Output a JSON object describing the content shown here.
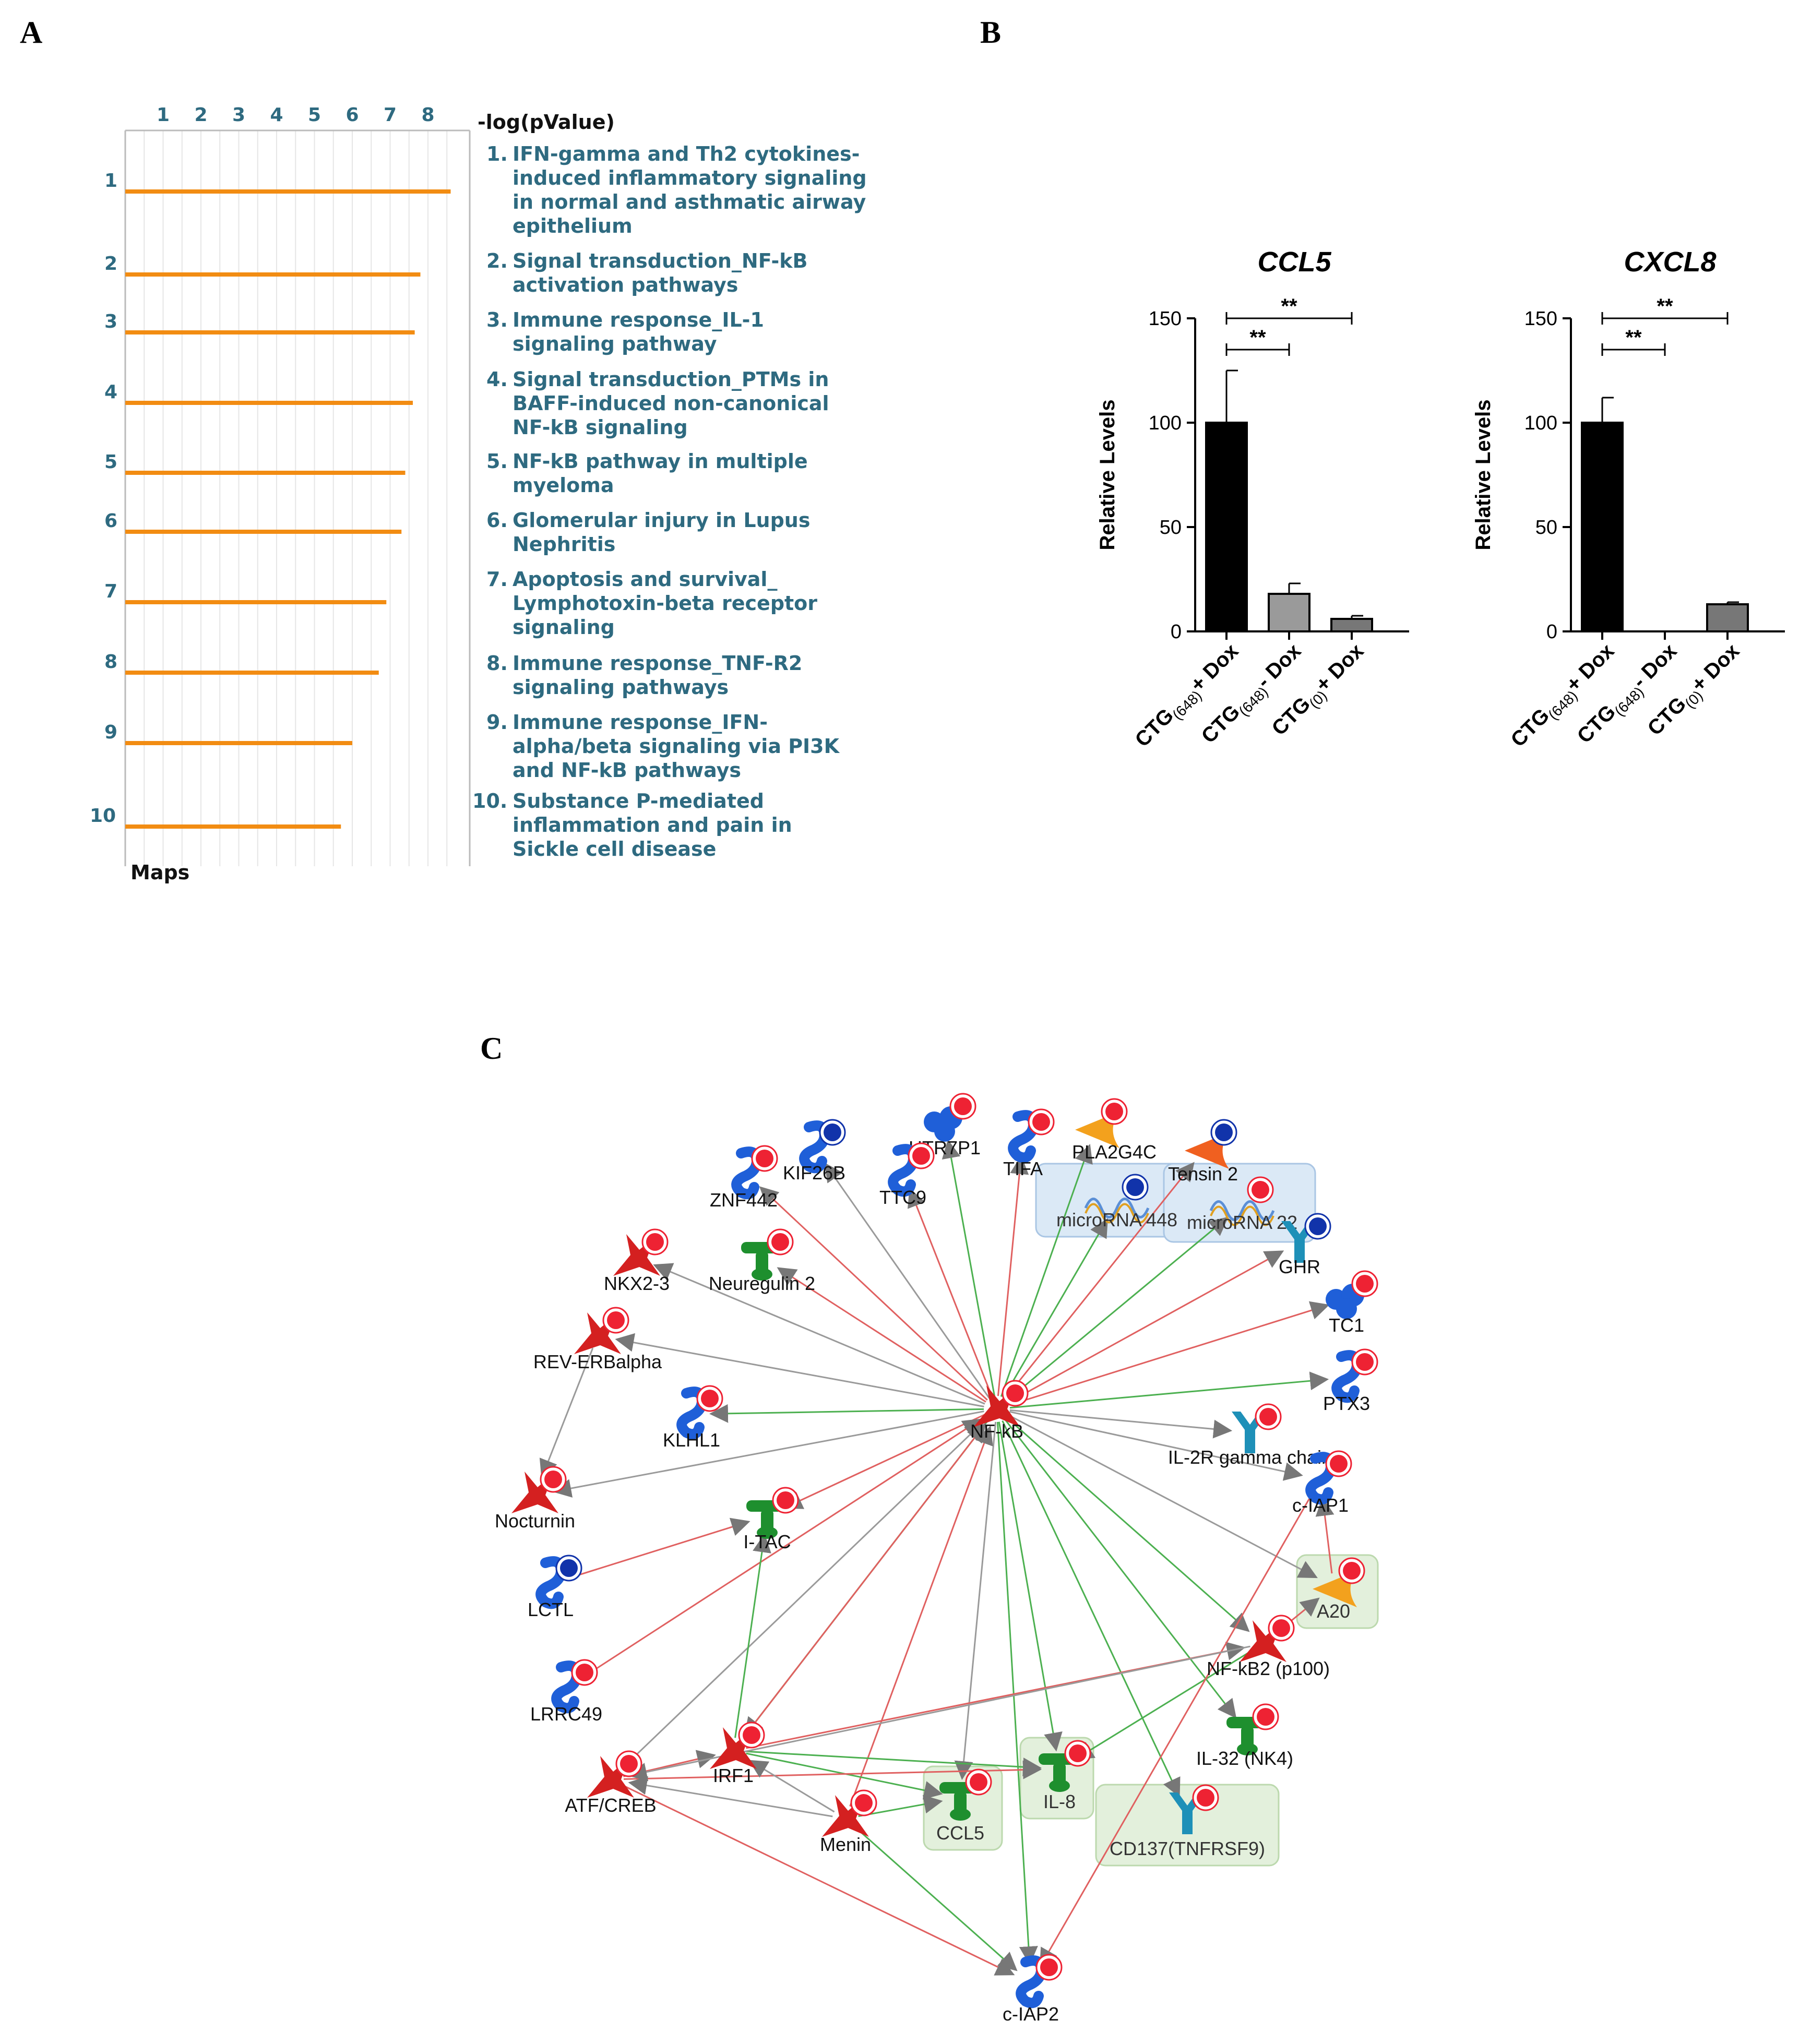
{
  "panels": {
    "a": "A",
    "b": "B",
    "c": "C"
  },
  "colors": {
    "orange": "#f28c12",
    "teal": "#2e6a80",
    "red_edge": "#e06060",
    "green_edge": "#4cb050",
    "gray_edge": "#9a9a9a"
  },
  "chart_data": [
    {
      "type": "bar",
      "orientation": "horizontal",
      "title": "",
      "xlabel": "-log(pValue)",
      "ylabel": "Maps",
      "xticks": [
        "1",
        "2",
        "3",
        "4",
        "5",
        "6",
        "7",
        "8"
      ],
      "xlim": [
        0,
        9
      ],
      "categories": [
        "1",
        "2",
        "3",
        "4",
        "5",
        "6",
        "7",
        "8",
        "9",
        "10"
      ],
      "values": [
        8.6,
        7.8,
        7.65,
        7.6,
        7.4,
        7.3,
        6.9,
        6.7,
        6.0,
        5.7
      ],
      "legend_lines": [
        {
          "num": "1.",
          "lines": [
            "IFN-gamma and Th2 cytokines-",
            "induced inflammatory signaling",
            "in normal and asthmatic airway",
            "epithelium"
          ]
        },
        {
          "num": "2.",
          "lines": [
            "Signal transduction_NF-kB",
            "activation pathways"
          ]
        },
        {
          "num": "3.",
          "lines": [
            "Immune response_IL-1",
            "signaling pathway"
          ]
        },
        {
          "num": "4.",
          "lines": [
            "Signal transduction_PTMs in",
            "BAFF-induced non-canonical",
            "NF-kB signaling"
          ]
        },
        {
          "num": "5.",
          "lines": [
            "NF-kB pathway in multiple",
            "myeloma"
          ]
        },
        {
          "num": "6.",
          "lines": [
            "Glomerular injury in Lupus",
            "Nephritis"
          ]
        },
        {
          "num": "7.",
          "lines": [
            "Apoptosis and survival_",
            "Lymphotoxin-beta receptor",
            "signaling"
          ]
        },
        {
          "num": "8.",
          "lines": [
            "Immune response_TNF-R2",
            "signaling pathways"
          ]
        },
        {
          "num": "9.",
          "lines": [
            "Immune response_IFN-",
            "alpha/beta signaling via PI3K",
            "and NF-kB pathways"
          ]
        },
        {
          "num": "10.",
          "lines": [
            "Substance P-mediated",
            "inflammation and pain in",
            "Sickle cell disease"
          ]
        }
      ]
    },
    {
      "type": "bar",
      "title": "CCL5",
      "ylabel": "Relative Levels",
      "ylim": [
        0,
        150
      ],
      "yticks": [
        "0",
        "50",
        "100",
        "150"
      ],
      "categories": [
        "+ Dox",
        "- Dox",
        "+ Dox"
      ],
      "category_bases": [
        "CTG",
        "CTG",
        "CTG"
      ],
      "category_subs": [
        "(648)",
        "(648)",
        "(0)"
      ],
      "values": [
        100,
        18,
        6
      ],
      "errors": [
        25,
        5,
        1.5
      ],
      "bar_colors": [
        "#000000",
        "#9a9a9a",
        "#777777"
      ],
      "significance": [
        "**",
        "**"
      ]
    },
    {
      "type": "bar",
      "title": "CXCL8",
      "ylabel": "Relative Levels",
      "ylim": [
        0,
        150
      ],
      "yticks": [
        "0",
        "50",
        "100",
        "150"
      ],
      "categories": [
        "+ Dox",
        "- Dox",
        "+ Dox"
      ],
      "category_bases": [
        "CTG",
        "CTG",
        "CTG"
      ],
      "category_subs": [
        "(648)",
        "(648)",
        "(0)"
      ],
      "values": [
        100,
        0,
        13
      ],
      "errors": [
        12,
        0,
        1
      ],
      "bar_colors": [
        "#000000",
        "#9a9a9a",
        "#777777"
      ],
      "significance": [
        "**",
        "**"
      ]
    }
  ],
  "network": {
    "nodes": [
      {
        "label": "NF-kB",
        "shape": "star",
        "color": "#d42020",
        "marker": "red"
      },
      {
        "label": "HTR7P1",
        "shape": "receptor",
        "color": "#1f5fd8",
        "marker": "red"
      },
      {
        "label": "TIFA",
        "shape": "protein",
        "color": "#1f5fd8",
        "marker": "red"
      },
      {
        "label": "PLA2G4C",
        "shape": "enzyme",
        "color": "#f3a11d",
        "marker": "red"
      },
      {
        "label": "KIF26B",
        "shape": "protein",
        "color": "#1f5fd8",
        "marker": "blue"
      },
      {
        "label": "Tensin 2",
        "shape": "enzyme",
        "color": "#f06020",
        "marker": "blue"
      },
      {
        "label": "ZNF442",
        "shape": "protein",
        "color": "#1f5fd8",
        "marker": "red"
      },
      {
        "label": "TTC9",
        "shape": "protein",
        "color": "#1f5fd8",
        "marker": "red"
      },
      {
        "label": "microRNA 448",
        "shape": "rna",
        "color": "#1f5fd8",
        "marker": "blue"
      },
      {
        "label": "microRNA 22",
        "shape": "rna",
        "color": "#1f5fd8",
        "marker": "red"
      },
      {
        "label": "GHR",
        "shape": "yreceptor",
        "color": "#1e90b8",
        "marker": "blue"
      },
      {
        "label": "NKX2-3",
        "shape": "star",
        "color": "#d42020",
        "marker": "red"
      },
      {
        "label": "Neuregulin 2",
        "shape": "ligand",
        "color": "#1e8f2e",
        "marker": "red"
      },
      {
        "label": "TC1",
        "shape": "receptor",
        "color": "#1f5fd8",
        "marker": "red"
      },
      {
        "label": "REV-ERBalpha",
        "shape": "star",
        "color": "#d42020",
        "marker": "red"
      },
      {
        "label": "PTX3",
        "shape": "protein",
        "color": "#1f5fd8",
        "marker": "red"
      },
      {
        "label": "KLHL1",
        "shape": "protein",
        "color": "#1f5fd8",
        "marker": "red"
      },
      {
        "label": "IL-2R gamma chain",
        "shape": "yreceptor",
        "color": "#1e90b8",
        "marker": "red"
      },
      {
        "label": "c-IAP1",
        "shape": "protein",
        "color": "#1f5fd8",
        "marker": "red"
      },
      {
        "label": "Nocturnin",
        "shape": "star",
        "color": "#d42020",
        "marker": "red"
      },
      {
        "label": "I-TAC",
        "shape": "ligand",
        "color": "#1e8f2e",
        "marker": "red"
      },
      {
        "label": "LCTL",
        "shape": "protein",
        "color": "#1f5fd8",
        "marker": "blue"
      },
      {
        "label": "A20",
        "shape": "enzyme",
        "color": "#f3a11d",
        "marker": "red"
      },
      {
        "label": "NF-kB2 (p100)",
        "shape": "star",
        "color": "#d42020",
        "marker": "red"
      },
      {
        "label": "LRRC49",
        "shape": "protein",
        "color": "#1f5fd8",
        "marker": "red"
      },
      {
        "label": "IL-32 (NK4)",
        "shape": "ligand",
        "color": "#1e8f2e",
        "marker": "red"
      },
      {
        "label": "IRF1",
        "shape": "star",
        "color": "#d42020",
        "marker": "red"
      },
      {
        "label": "ATF/CREB",
        "shape": "star",
        "color": "#d42020",
        "marker": "red"
      },
      {
        "label": "IL-8",
        "shape": "ligand",
        "color": "#1e8f2e",
        "marker": "red"
      },
      {
        "label": "CCL5",
        "shape": "ligand",
        "color": "#1e8f2e",
        "marker": "red"
      },
      {
        "label": "CD137(TNFRSF9)",
        "shape": "yreceptor",
        "color": "#1e90b8",
        "marker": "red"
      },
      {
        "label": "Menin",
        "shape": "star",
        "color": "#d42020",
        "marker": "red"
      },
      {
        "label": "c-IAP2",
        "shape": "protein",
        "color": "#1f5fd8",
        "marker": "red"
      }
    ],
    "edges": [
      [
        "NF-kB",
        "HTR7P1",
        "green"
      ],
      [
        "NF-kB",
        "TIFA",
        "red"
      ],
      [
        "NF-kB",
        "PLA2G4C",
        "green"
      ],
      [
        "NF-kB",
        "KIF26B",
        "gray"
      ],
      [
        "NF-kB",
        "Tensin 2",
        "red"
      ],
      [
        "NF-kB",
        "ZNF442",
        "red"
      ],
      [
        "NF-kB",
        "TTC9",
        "red"
      ],
      [
        "NF-kB",
        "microRNA 448",
        "green"
      ],
      [
        "NF-kB",
        "microRNA 22",
        "green"
      ],
      [
        "NF-kB",
        "GHR",
        "red"
      ],
      [
        "NF-kB",
        "NKX2-3",
        "gray"
      ],
      [
        "NF-kB",
        "Neuregulin 2",
        "red"
      ],
      [
        "NF-kB",
        "TC1",
        "red"
      ],
      [
        "NF-kB",
        "REV-ERBalpha",
        "gray"
      ],
      [
        "NF-kB",
        "PTX3",
        "green"
      ],
      [
        "NF-kB",
        "KLHL1",
        "green"
      ],
      [
        "NF-kB",
        "IL-2R gamma chain",
        "gray"
      ],
      [
        "NF-kB",
        "c-IAP1",
        "gray"
      ],
      [
        "NF-kB",
        "Nocturnin",
        "gray"
      ],
      [
        "NF-kB",
        "I-TAC",
        "red"
      ],
      [
        "NF-kB",
        "A20",
        "gray"
      ],
      [
        "NF-kB",
        "NF-kB2 (p100)",
        "green"
      ],
      [
        "NF-kB",
        "IL-32 (NK4)",
        "green"
      ],
      [
        "NF-kB",
        "IRF1",
        "green"
      ],
      [
        "NF-kB",
        "IL-8",
        "green"
      ],
      [
        "NF-kB",
        "CCL5",
        "gray"
      ],
      [
        "NF-kB",
        "CD137(TNFRSF9)",
        "green"
      ],
      [
        "NF-kB",
        "c-IAP2",
        "green"
      ],
      [
        "ATF/CREB",
        "NF-kB",
        "gray"
      ],
      [
        "Menin",
        "NF-kB",
        "red"
      ],
      [
        "IRF1",
        "NF-kB",
        "red"
      ],
      [
        "REV-ERBalpha",
        "Nocturnin",
        "gray"
      ],
      [
        "LCTL",
        "I-TAC",
        "red"
      ],
      [
        "LRRC49",
        "NF-kB",
        "red"
      ],
      [
        "IRF1",
        "I-TAC",
        "green"
      ],
      [
        "IRF1",
        "CCL5",
        "green"
      ],
      [
        "IRF1",
        "IL-8",
        "green"
      ],
      [
        "IRF1",
        "NF-kB2 (p100)",
        "red"
      ],
      [
        "ATF/CREB",
        "IL-8",
        "red"
      ],
      [
        "ATF/CREB",
        "c-IAP2",
        "red"
      ],
      [
        "ATF/CREB",
        "IRF1",
        "red"
      ],
      [
        "Menin",
        "IRF1",
        "gray"
      ],
      [
        "Menin",
        "ATF/CREB",
        "gray"
      ],
      [
        "Menin",
        "CCL5",
        "green"
      ],
      [
        "Menin",
        "c-IAP2",
        "green"
      ],
      [
        "NF-kB2 (p100)",
        "IL-8",
        "green"
      ],
      [
        "NF-kB2 (p100)",
        "A20",
        "red"
      ],
      [
        "A20",
        "c-IAP1",
        "red"
      ],
      [
        "c-IAP1",
        "c-IAP2",
        "red"
      ],
      [
        "NF-kB2 (p100)",
        "ATF/CREB",
        "gray"
      ]
    ]
  }
}
